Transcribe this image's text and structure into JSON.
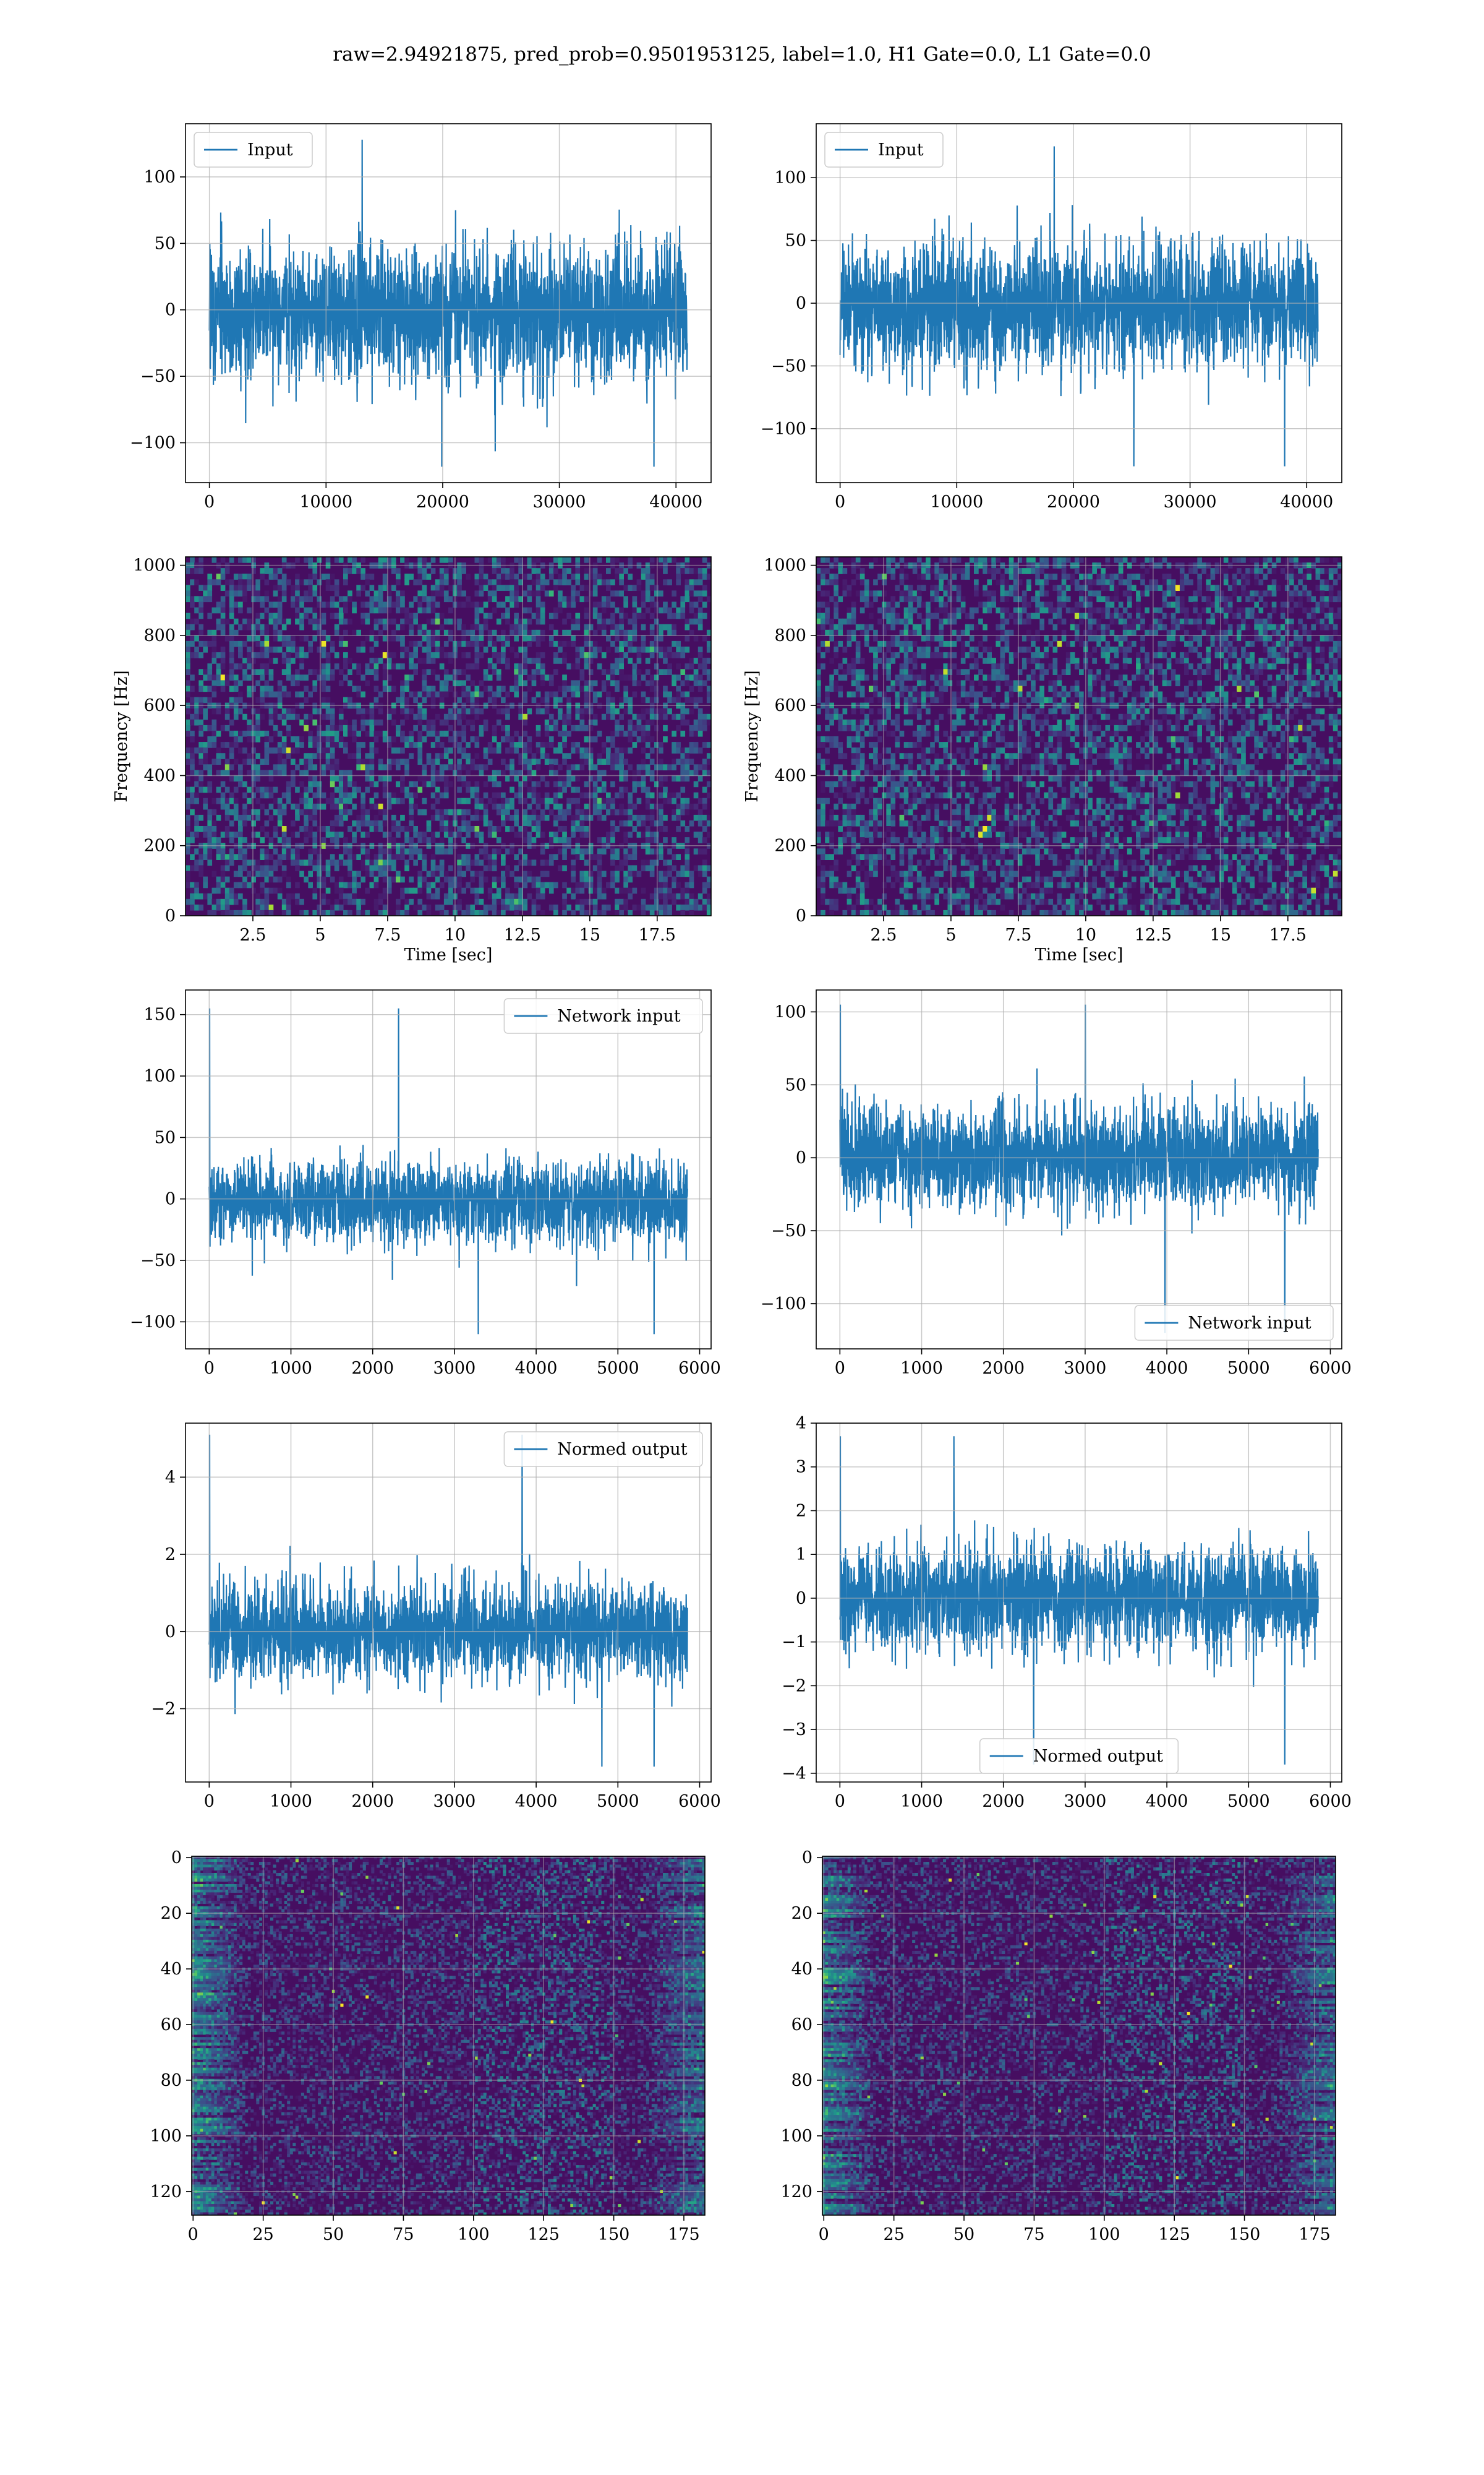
{
  "suptitle": "raw=2.94921875, pred_prob=0.9501953125, label=1.0, H1 Gate=0.0, L1 Gate=0.0",
  "chart_data": [
    {
      "type": "line",
      "panel": "row1-left",
      "series": [
        {
          "name": "Input",
          "color": "#1f77b4",
          "x_range": [
            0,
            40960
          ],
          "amplitude_envelope": [
            -70,
            65
          ],
          "peaks": [
            128,
            -118
          ]
        }
      ],
      "xlim": [
        -2048,
        43008
      ],
      "ylim": [
        -130,
        140
      ],
      "xticks": [
        0,
        10000,
        20000,
        30000,
        40000
      ],
      "yticks": [
        -100,
        -50,
        0,
        50,
        100
      ],
      "legend": "upper-left",
      "grid": true,
      "xlabel": "",
      "ylabel": ""
    },
    {
      "type": "line",
      "panel": "row1-right",
      "series": [
        {
          "name": "Input",
          "color": "#1f77b4",
          "x_range": [
            0,
            40960
          ],
          "amplitude_envelope": [
            -65,
            60
          ],
          "peaks": [
            125,
            -130
          ]
        }
      ],
      "xlim": [
        -2048,
        43008
      ],
      "ylim": [
        -143,
        143
      ],
      "xticks": [
        0,
        10000,
        20000,
        30000,
        40000
      ],
      "yticks": [
        -100,
        -50,
        0,
        50,
        100
      ],
      "legend": "upper-left",
      "grid": true,
      "xlabel": "",
      "ylabel": ""
    },
    {
      "type": "heatmap",
      "panel": "row2-left",
      "colormap": "viridis",
      "xlim": [
        0,
        19.5
      ],
      "ylim": [
        0,
        1024
      ],
      "xticks": [
        2.5,
        5.0,
        7.5,
        10.0,
        12.5,
        15.0,
        17.5
      ],
      "yticks": [
        0,
        200,
        400,
        600,
        800,
        1000
      ],
      "xlabel": "Time [sec]",
      "ylabel": "Frequency [Hz]",
      "grid": true
    },
    {
      "type": "heatmap",
      "panel": "row2-right",
      "colormap": "viridis",
      "xlim": [
        0,
        19.5
      ],
      "ylim": [
        0,
        1024
      ],
      "xticks": [
        2.5,
        5.0,
        7.5,
        10.0,
        12.5,
        15.0,
        17.5
      ],
      "yticks": [
        0,
        200,
        400,
        600,
        800,
        1000
      ],
      "xlabel": "Time [sec]",
      "ylabel": "Frequency [Hz]",
      "grid": true
    },
    {
      "type": "line",
      "panel": "row3-left",
      "series": [
        {
          "name": "Network input",
          "color": "#1f77b4",
          "x_range": [
            0,
            5850
          ],
          "amplitude_envelope": [
            -45,
            40
          ],
          "peaks": [
            155,
            -110
          ]
        }
      ],
      "xlim": [
        -290,
        6140
      ],
      "ylim": [
        -122,
        170
      ],
      "xticks": [
        0,
        1000,
        2000,
        3000,
        4000,
        5000,
        6000
      ],
      "yticks": [
        -100,
        -50,
        0,
        50,
        100,
        150
      ],
      "legend": "upper-right",
      "grid": true,
      "xlabel": "",
      "ylabel": ""
    },
    {
      "type": "line",
      "panel": "row3-right",
      "series": [
        {
          "name": "Network input",
          "color": "#1f77b4",
          "x_range": [
            0,
            5850
          ],
          "amplitude_envelope": [
            -45,
            45
          ],
          "peaks": [
            105,
            -120
          ]
        }
      ],
      "xlim": [
        -290,
        6140
      ],
      "ylim": [
        -131,
        115
      ],
      "xticks": [
        0,
        1000,
        2000,
        3000,
        4000,
        5000,
        6000
      ],
      "yticks": [
        -100,
        -50,
        0,
        50,
        100
      ],
      "legend": "lower-right",
      "grid": true,
      "xlabel": "",
      "ylabel": ""
    },
    {
      "type": "line",
      "panel": "row4-left",
      "series": [
        {
          "name": "Normed output",
          "color": "#1f77b4",
          "x_range": [
            0,
            5850
          ],
          "amplitude_envelope": [
            -1.6,
            1.6
          ],
          "peaks": [
            5.1,
            -3.5
          ]
        }
      ],
      "xlim": [
        -290,
        6140
      ],
      "ylim": [
        -3.9,
        5.4
      ],
      "xticks": [
        0,
        1000,
        2000,
        3000,
        4000,
        5000,
        6000
      ],
      "yticks": [
        -2,
        0,
        2,
        4
      ],
      "legend": "upper-right",
      "grid": true,
      "xlabel": "",
      "ylabel": ""
    },
    {
      "type": "line",
      "panel": "row4-right",
      "series": [
        {
          "name": "Normed output",
          "color": "#1f77b4",
          "x_range": [
            0,
            5850
          ],
          "amplitude_envelope": [
            -1.5,
            1.5
          ],
          "peaks": [
            3.7,
            -3.8
          ]
        }
      ],
      "xlim": [
        -290,
        6140
      ],
      "ylim": [
        -4.2,
        4.0
      ],
      "xticks": [
        0,
        1000,
        2000,
        3000,
        4000,
        5000,
        6000
      ],
      "yticks": [
        -4,
        -3,
        -2,
        -1,
        0,
        1,
        2,
        3,
        4
      ],
      "legend": "lower-center",
      "grid": true,
      "xlabel": "",
      "ylabel": ""
    },
    {
      "type": "heatmap",
      "panel": "row5-left",
      "colormap": "viridis",
      "xlim": [
        -0.5,
        182.5
      ],
      "ylim": [
        128.5,
        -0.5
      ],
      "xticks": [
        0,
        25,
        50,
        75,
        100,
        125,
        150,
        175
      ],
      "yticks": [
        0,
        20,
        40,
        60,
        80,
        100,
        120
      ],
      "xlabel": "",
      "ylabel": "",
      "grid": true
    },
    {
      "type": "heatmap",
      "panel": "row5-right",
      "colormap": "viridis",
      "xlim": [
        -0.5,
        182.5
      ],
      "ylim": [
        128.5,
        -0.5
      ],
      "xticks": [
        0,
        25,
        50,
        75,
        100,
        125,
        150,
        175
      ],
      "yticks": [
        0,
        20,
        40,
        60,
        80,
        100,
        120
      ],
      "xlabel": "",
      "ylabel": "",
      "grid": true
    }
  ]
}
